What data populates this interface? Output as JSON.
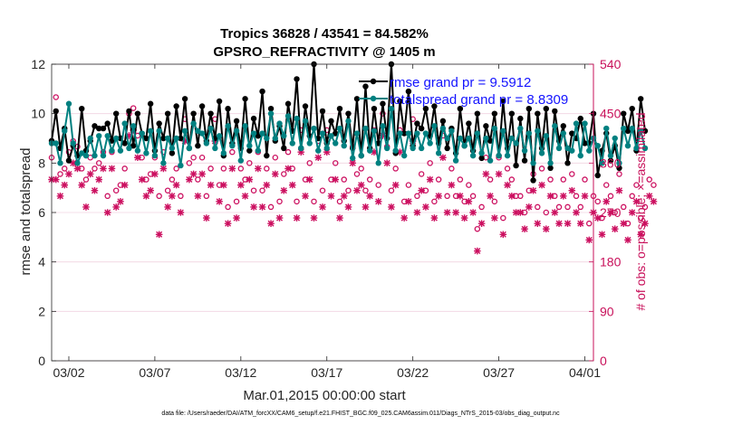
{
  "chart_data": {
    "type": "line",
    "title_line1": "Tropics 36828 / 43541 = 84.582%",
    "title_line2": "GPSRO_REFRACTIVITY @ 1405 m",
    "xlabel": "Mar.01,2015 00:00:00 start",
    "ylabel_left": "rmse and totalspread",
    "ylabel_right": "# of obs: o=possible; ×=assimilated",
    "footer": "data file: /Users/raeder/DAI/ATM_forcXX/CAM6_setup/f.e21.FHIST_BGC.f09_025.CAM6assim.011/Diags_NTrS_2015-03/obs_diag_output.nc",
    "xlim": [
      0,
      31.5
    ],
    "ylim_left": [
      0,
      12
    ],
    "ylim_right": [
      0,
      540
    ],
    "xtick_values": [
      1,
      6,
      11,
      16,
      21,
      26,
      31
    ],
    "xtick_labels": [
      "03/02",
      "03/07",
      "03/12",
      "03/17",
      "03/22",
      "03/27",
      "04/01"
    ],
    "ytick_left": [
      "0",
      "2",
      "4",
      "6",
      "8",
      "10",
      "12"
    ],
    "ytick_right": [
      "0",
      "90",
      "180",
      "270",
      "360",
      "450",
      "540"
    ],
    "colors": {
      "rmse": "#000000",
      "spread": "#008080",
      "obs": "#cc1060",
      "legend_text": "#1414ff",
      "right_axis": "#c8105a"
    },
    "legend": [
      {
        "label": "rmse grand pr = 9.5912",
        "color": "#000000"
      },
      {
        "label": "totalspread grand pr = 8.8309",
        "color": "#008080"
      }
    ],
    "series": [
      {
        "name": "rmse",
        "axis": "left",
        "color": "#000000",
        "values": [
          8.9,
          10.1,
          8.6,
          9.4,
          8.1,
          8.7,
          8.3,
          10.2,
          8.5,
          8.9,
          9.5,
          9.4,
          9.4,
          9.6,
          8.9,
          10.0,
          9.0,
          8.8,
          10.1,
          8.7,
          10.0,
          9.2,
          9.0,
          10.4,
          8.5,
          9.6,
          9.0,
          10.0,
          8.4,
          10.3,
          9.0,
          10.6,
          8.6,
          10.0,
          8.7,
          10.3,
          8.9,
          10.0,
          9.0,
          10.5,
          8.3,
          10.2,
          8.8,
          9.7,
          8.6,
          10.6,
          8.5,
          9.8,
          9.1,
          10.9,
          8.3,
          10.2,
          8.9,
          9.5,
          8.6,
          10.4,
          9.3,
          11.4,
          8.6,
          10.3,
          9.1,
          12.0,
          9.0,
          10.1,
          8.8,
          9.7,
          9.2,
          10.2,
          8.9,
          10.0,
          8.6,
          10.6,
          8.3,
          11.1,
          8.6,
          10.2,
          8.8,
          10.4,
          9.0,
          12.0,
          8.4,
          10.5,
          9.2,
          10.9,
          8.7,
          9.6,
          9.4,
          10.2,
          9.1,
          10.3,
          8.8,
          9.7,
          8.6,
          9.4,
          8.4,
          10.2,
          8.7,
          9.6,
          8.5,
          10.0,
          8.2,
          9.5,
          8.9,
          10.0,
          8.3,
          10.5,
          8.6,
          10.0,
          7.9,
          9.8,
          8.1,
          10.2,
          7.3,
          10.0,
          8.6,
          10.2,
          7.8,
          10.1,
          8.9,
          9.5,
          8.0,
          9.2,
          9.0,
          9.8,
          8.8,
          8.8,
          10.0,
          7.5,
          8.5,
          9.2,
          8.1,
          8.7,
          7.8,
          10.0,
          9.3,
          10.2,
          8.5,
          10.6,
          9.3
        ]
      },
      {
        "name": "totalspread",
        "axis": "left",
        "color": "#008080",
        "values": [
          8.8,
          8.8,
          8.0,
          9.3,
          10.4,
          8.8,
          8.0,
          8.4,
          8.3,
          9.0,
          8.3,
          9.1,
          8.3,
          9.1,
          8.5,
          9.0,
          8.5,
          9.6,
          8.6,
          9.5,
          8.5,
          9.2,
          8.4,
          9.3,
          8.3,
          9.3,
          8.0,
          9.0,
          8.6,
          9.0,
          7.9,
          9.3,
          8.6,
          9.6,
          9.3,
          9.2,
          8.8,
          9.4,
          8.6,
          9.1,
          8.4,
          9.5,
          8.7,
          9.3,
          8.1,
          9.5,
          8.7,
          9.2,
          8.5,
          9.2,
          9.0,
          10.0,
          9.0,
          9.6,
          9.1,
          9.9,
          8.8,
          9.8,
          8.6,
          9.7,
          8.8,
          9.4,
          8.5,
          9.2,
          8.6,
          9.1,
          8.8,
          9.4,
          8.7,
          9.7,
          8.2,
          9.2,
          8.3,
          9.4,
          8.5,
          9.3,
          8.0,
          9.5,
          8.6,
          10.2,
          8.5,
          9.2,
          8.3,
          9.2,
          8.6,
          9.2,
          8.6,
          9.2,
          8.8,
          9.5,
          8.4,
          9.4,
          9.0,
          9.3,
          8.1,
          9.0,
          8.7,
          9.0,
          8.3,
          9.2,
          8.4,
          9.0,
          8.1,
          9.4,
          8.3,
          9.3,
          8.3,
          9.0,
          8.8,
          9.4,
          8.5,
          9.2,
          8.0,
          9.3,
          8.4,
          9.1,
          8.0,
          9.5,
          8.6,
          9.2,
          8.6,
          8.5,
          9.6,
          8.3,
          9.6,
          8.5,
          9.0,
          8.7,
          8.0,
          9.4,
          8.3,
          9.0,
          8.0,
          9.4,
          8.7,
          9.4,
          8.6,
          9.3,
          8.6
        ]
      },
      {
        "name": "possible",
        "axis": "right",
        "marker": "o",
        "color": "#cc1060",
        "values": [
          370,
          480,
          340,
          350,
          380,
          400,
          390,
          350,
          330,
          370,
          350,
          360,
          380,
          300,
          380,
          310,
          320,
          350,
          450,
          460,
          410,
          370,
          330,
          340,
          370,
          300,
          380,
          310,
          330,
          350,
          300,
          440,
          360,
          370,
          330,
          370,
          300,
          350,
          440,
          320,
          350,
          280,
          380,
          290,
          350,
          330,
          360,
          310,
          380,
          310,
          350,
          280,
          370,
          290,
          340,
          380,
          350,
          290,
          420,
          330,
          360,
          290,
          400,
          310,
          420,
          330,
          360,
          290,
          330,
          310,
          390,
          340,
          350,
          310,
          330,
          420,
          320,
          450,
          390,
          310,
          350,
          420,
          290,
          320,
          440,
          300,
          340,
          310,
          360,
          290,
          330,
          410,
          300,
          350,
          300,
          330,
          290,
          320,
          300,
          240,
          280,
          370,
          330,
          290,
          370,
          260,
          350,
          330,
          300,
          300,
          270,
          310,
          340,
          280,
          350,
          270,
          330,
          300,
          280,
          330,
          280,
          340,
          300,
          280,
          330,
          250,
          300,
          290,
          260,
          320,
          300,
          270,
          340,
          280,
          250,
          300,
          320,
          260,
          280,
          330,
          320
        ]
      },
      {
        "name": "assimilated",
        "axis": "right",
        "marker": "x",
        "color": "#cc1060",
        "values": [
          330,
          330,
          300,
          320,
          340,
          360,
          350,
          320,
          280,
          340,
          310,
          330,
          350,
          270,
          350,
          280,
          290,
          320,
          410,
          420,
          370,
          330,
          300,
          310,
          340,
          230,
          350,
          280,
          300,
          320,
          270,
          400,
          330,
          340,
          300,
          340,
          260,
          320,
          400,
          290,
          320,
          250,
          350,
          260,
          320,
          300,
          330,
          280,
          350,
          280,
          320,
          250,
          340,
          260,
          310,
          350,
          320,
          260,
          380,
          300,
          330,
          260,
          370,
          280,
          380,
          300,
          330,
          260,
          300,
          280,
          360,
          310,
          320,
          280,
          300,
          380,
          290,
          410,
          360,
          280,
          320,
          380,
          260,
          290,
          400,
          270,
          310,
          280,
          330,
          260,
          300,
          370,
          270,
          320,
          270,
          300,
          260,
          290,
          270,
          200,
          250,
          340,
          300,
          260,
          340,
          230,
          320,
          300,
          270,
          270,
          240,
          280,
          310,
          250,
          320,
          240,
          300,
          270,
          250,
          300,
          250,
          310,
          270,
          250,
          300,
          220,
          270,
          260,
          230,
          290,
          270,
          240,
          310,
          250,
          220,
          270,
          290,
          230,
          250,
          300,
          290
        ]
      }
    ]
  }
}
